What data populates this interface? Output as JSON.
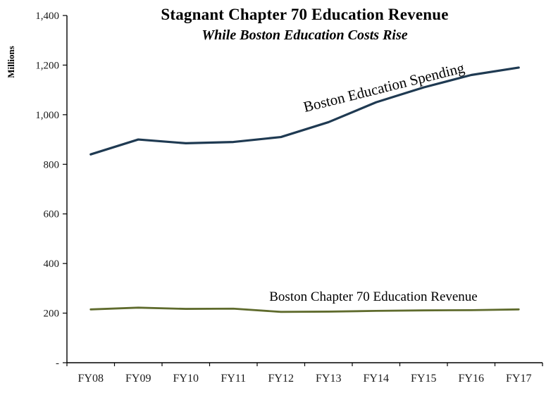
{
  "chart_data": {
    "type": "line",
    "title": "Stagnant Chapter 70 Education Revenue",
    "subtitle": "While Boston Education Costs Rise",
    "ylabel": "Millions",
    "xlabel": "",
    "categories": [
      "FY08",
      "FY09",
      "FY10",
      "FY11",
      "FY12",
      "FY13",
      "FY14",
      "FY15",
      "FY16",
      "FY17"
    ],
    "series": [
      {
        "name": "Boston Education Spending",
        "color": "#1f3a52",
        "values": [
          840,
          900,
          885,
          890,
          910,
          970,
          1050,
          1110,
          1160,
          1190
        ]
      },
      {
        "name": "Boston Chapter 70 Education Revenue",
        "color": "#5f6b2d",
        "values": [
          215,
          222,
          217,
          218,
          205,
          206,
          209,
          211,
          212,
          215
        ]
      }
    ],
    "ylim": [
      0,
      1400
    ],
    "yticks": [
      {
        "value": 0,
        "label": "-"
      },
      {
        "value": 200,
        "label": "200"
      },
      {
        "value": 400,
        "label": "400"
      },
      {
        "value": 600,
        "label": "600"
      },
      {
        "value": 800,
        "label": "800"
      },
      {
        "value": 1000,
        "label": "1,000"
      },
      {
        "value": 1200,
        "label": "1,200"
      },
      {
        "value": 1400,
        "label": "1,400"
      }
    ],
    "grid": false,
    "legend_position": "none"
  }
}
